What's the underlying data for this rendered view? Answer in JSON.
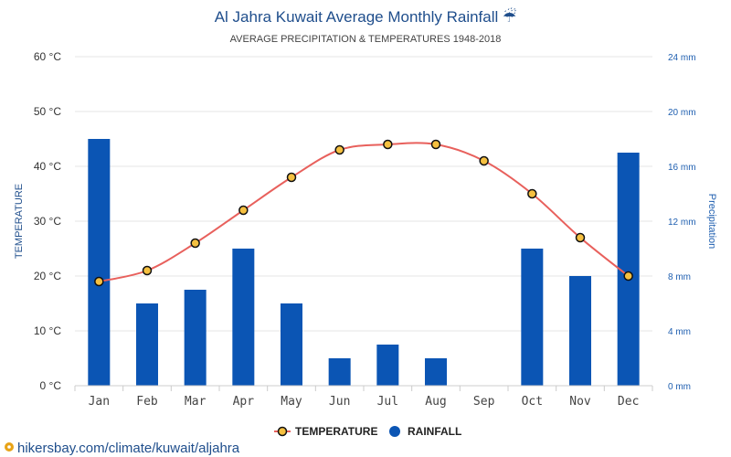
{
  "title": "Al Jahra Kuwait Average Monthly Rainfall ☔",
  "subtitle": "AVERAGE PRECIPITATION & TEMPERATURES 1948-2018",
  "source_text": "hikersbay.com/climate/kuwait/aljahra",
  "colors": {
    "temperature_line": "#e8605c",
    "temperature_marker": "#f5c040",
    "marker_edge": "#111111",
    "rainfall_bar": "#0b55b4"
  },
  "chart_data": {
    "type": "bar",
    "categories": [
      "Jan",
      "Feb",
      "Mar",
      "Apr",
      "May",
      "Jun",
      "Jul",
      "Aug",
      "Sep",
      "Oct",
      "Nov",
      "Dec"
    ],
    "series": [
      {
        "name": "TEMPERATURE",
        "axis": "left",
        "type": "line",
        "values": [
          19,
          21,
          26,
          32,
          38,
          43,
          44,
          44,
          41,
          35,
          27,
          20
        ]
      },
      {
        "name": "RAINFALL",
        "axis": "right",
        "type": "bar",
        "values": [
          18,
          6,
          7,
          10,
          6,
          2,
          3,
          2,
          0,
          10,
          8,
          17
        ]
      }
    ],
    "y_left": {
      "label": "TEMPERATURE",
      "ticks": [
        "0 °C",
        "10 °C",
        "20 °C",
        "30 °C",
        "40 °C",
        "50 °C",
        "60 °C"
      ],
      "range": [
        0,
        60
      ]
    },
    "y_right": {
      "label": "Precipitation",
      "ticks": [
        "0 mm",
        "4 mm",
        "8 mm",
        "12 mm",
        "16 mm",
        "20 mm",
        "24 mm"
      ],
      "range": [
        0,
        24
      ]
    },
    "grid": true,
    "legend": {
      "position": "bottom-center",
      "items": [
        "TEMPERATURE",
        "RAINFALL"
      ]
    }
  }
}
